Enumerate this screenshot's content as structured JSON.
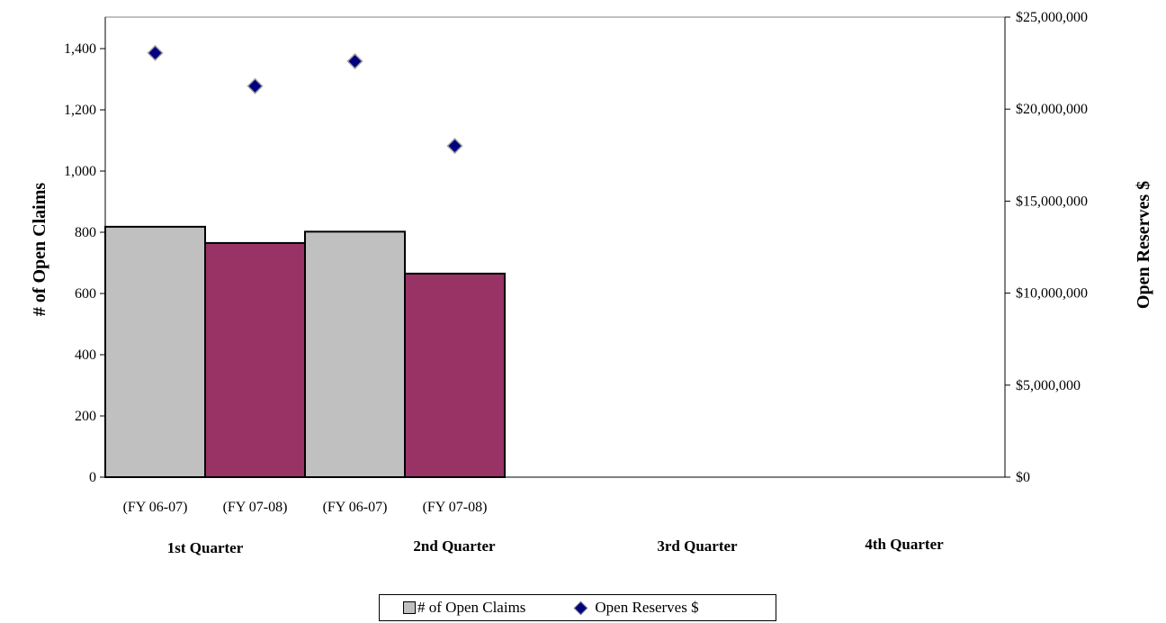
{
  "chart_data": {
    "type": "bar",
    "categories": [
      "(FY 06-07)",
      "(FY 07-08)",
      "(FY 06-07)",
      "(FY 07-08)"
    ],
    "groups": [
      "1st Quarter",
      "2nd Quarter",
      "3rd Quarter",
      "4th Quarter"
    ],
    "series": [
      {
        "name": "# of Open Claims",
        "type": "bar",
        "axis": "left",
        "values": [
          818,
          765,
          802,
          665
        ],
        "colors": [
          "#c0c0c0",
          "#993366",
          "#c0c0c0",
          "#993366"
        ]
      },
      {
        "name": "Open Reserves $",
        "type": "scatter",
        "axis": "right",
        "marker": "diamond",
        "color": "#000080",
        "values": [
          23050000,
          21250000,
          22600000,
          18000000
        ]
      }
    ],
    "ylabel": "# of Open Claims",
    "y2label": "Open Reserves $",
    "ylim": [
      0,
      1400
    ],
    "yticks": [
      "0",
      "200",
      "400",
      "600",
      "800",
      "1,000",
      "1,200",
      "1,400"
    ],
    "y2lim": [
      0,
      25000000
    ],
    "y2ticks": [
      "$0",
      "$5,000,000",
      "$10,000,000",
      "$15,000,000",
      "$20,000,000",
      "$25,000,000"
    ],
    "legend_position": "bottom",
    "grid": false
  }
}
